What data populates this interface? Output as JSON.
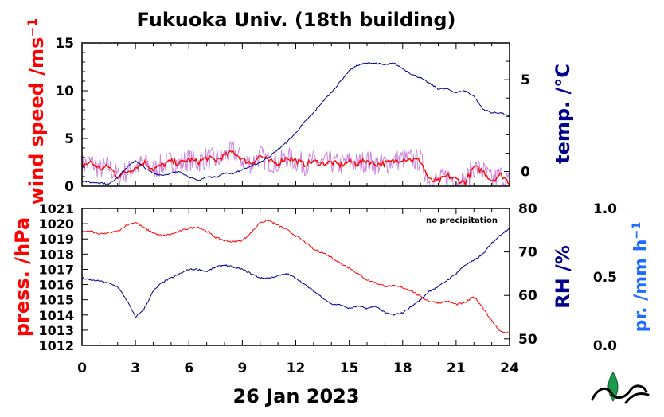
{
  "title": "Fukuoka Univ. (18th building)",
  "date_label": "26 Jan 2023",
  "logo_icon": "ies-leaf-logo",
  "colors": {
    "wind": "#ff0000",
    "wind_raw": "#cc88dd",
    "temp": "#00008b",
    "press": "#ff0000",
    "rh": "#00008b",
    "precip": "#1e6cff",
    "axis": "#000000"
  },
  "x_axis": {
    "ticks": [
      "0",
      "3",
      "6",
      "9",
      "12",
      "15",
      "18",
      "21",
      "24"
    ],
    "range": [
      0,
      24
    ]
  },
  "top_panel": {
    "left_axis": {
      "label_main": "wind speed /ms",
      "label_sup": "−1",
      "ticks": [
        "0",
        "5",
        "10",
        "15"
      ],
      "range": [
        0,
        15
      ]
    },
    "right_axis": {
      "label": "temp. /°C",
      "ticks": [
        "0",
        "5"
      ],
      "range": [
        -0.8,
        7.0
      ]
    }
  },
  "bottom_panel": {
    "left_axis": {
      "label": "press. /hPa",
      "ticks": [
        "1012",
        "1013",
        "1014",
        "1015",
        "1016",
        "1017",
        "1018",
        "1019",
        "1020",
        "1021"
      ],
      "range": [
        1012,
        1021
      ]
    },
    "right_axis": {
      "label": "RH /%",
      "ticks": [
        "50",
        "60",
        "70",
        "80"
      ],
      "range": [
        48.5,
        80
      ]
    },
    "far_right_axis": {
      "label_main": "pr. /mm h",
      "label_sup": "−1",
      "ticks": [
        "0.0",
        "0.5",
        "1.0"
      ],
      "range": [
        0,
        1
      ]
    },
    "annotation": "no precipitation"
  },
  "chart_data": [
    {
      "type": "line",
      "title": "Fukuoka Univ. (18th building)",
      "xlabel": "26 Jan 2023",
      "ylabel": "wind speed /ms−1",
      "y2label": "temp. /°C",
      "xlim": [
        0,
        24
      ],
      "ylim": [
        0,
        15
      ],
      "y2lim": [
        -0.8,
        7.0
      ],
      "grid": false,
      "series": [
        {
          "name": "wind speed",
          "axis": "left",
          "color": "#ff0000",
          "x": [
            0,
            0.5,
            1,
            1.5,
            2,
            2.5,
            3,
            3.5,
            4,
            4.5,
            5,
            5.5,
            6,
            6.5,
            7,
            7.5,
            8,
            8.5,
            9,
            9.5,
            10,
            10.5,
            11,
            11.5,
            12,
            12.5,
            13,
            13.5,
            14,
            14.5,
            15,
            15.5,
            16,
            16.5,
            17,
            17.5,
            18,
            18.5,
            19,
            19.5,
            20,
            20.5,
            21,
            21.5,
            22,
            22.5,
            23,
            23.5,
            24
          ],
          "values": [
            2.2,
            2.5,
            1.8,
            2.1,
            1.0,
            1.5,
            2.0,
            2.5,
            1.8,
            2.2,
            2.6,
            2.4,
            2.8,
            2.5,
            3.0,
            2.7,
            3.2,
            3.6,
            2.8,
            2.4,
            3.2,
            2.6,
            2.4,
            3.0,
            2.7,
            2.3,
            2.6,
            2.4,
            2.5,
            2.2,
            2.6,
            2.4,
            2.7,
            2.3,
            2.4,
            2.6,
            2.9,
            2.8,
            2.7,
            0.6,
            0.5,
            1.1,
            0.7,
            0.4,
            2.0,
            1.6,
            0.6,
            1.2,
            0.4
          ]
        },
        {
          "name": "temperature",
          "axis": "right",
          "color": "#00008b",
          "x": [
            0,
            0.5,
            1,
            1.5,
            2,
            2.5,
            3,
            3.5,
            4,
            4.5,
            5,
            5.5,
            6,
            6.5,
            7,
            7.5,
            8,
            8.5,
            9,
            9.5,
            10,
            10.5,
            11,
            11.5,
            12,
            12.5,
            13,
            13.5,
            14,
            14.5,
            15,
            15.5,
            16,
            16.5,
            17,
            17.5,
            18,
            18.5,
            19,
            19.5,
            20,
            20.5,
            21,
            21.5,
            22,
            22.5,
            23,
            23.5,
            24
          ],
          "values": [
            -0.5,
            -0.6,
            -0.6,
            -0.7,
            -0.3,
            0.2,
            0.6,
            0.2,
            -0.1,
            -0.2,
            -0.1,
            0.0,
            -0.3,
            -0.5,
            -0.3,
            -0.3,
            -0.1,
            -0.1,
            0.1,
            0.3,
            0.5,
            0.8,
            1.2,
            1.6,
            2.1,
            2.7,
            3.2,
            3.8,
            4.3,
            4.9,
            5.5,
            5.8,
            5.9,
            5.9,
            5.8,
            5.9,
            5.6,
            5.3,
            5.1,
            4.8,
            4.5,
            4.5,
            4.3,
            4.4,
            4.1,
            3.4,
            3.2,
            3.2,
            3.0
          ]
        }
      ]
    },
    {
      "type": "line",
      "xlabel": "26 Jan 2023",
      "ylabel": "press. /hPa",
      "y2label": "RH /%",
      "y3label": "pr. /mm h−1",
      "xlim": [
        0,
        24
      ],
      "ylim": [
        1012,
        1021
      ],
      "y2lim": [
        48.5,
        80
      ],
      "y3lim": [
        0,
        1
      ],
      "annotation": "no precipitation",
      "grid": false,
      "series": [
        {
          "name": "pressure",
          "axis": "left",
          "color": "#ff0000",
          "x": [
            0,
            0.5,
            1,
            1.5,
            2,
            2.5,
            3,
            3.5,
            4,
            4.5,
            5,
            5.5,
            6,
            6.5,
            7,
            7.5,
            8,
            8.5,
            9,
            9.5,
            10,
            10.5,
            11,
            11.5,
            12,
            12.5,
            13,
            13.5,
            14,
            14.5,
            15,
            15.5,
            16,
            16.5,
            17,
            17.5,
            18,
            18.5,
            19,
            19.5,
            20,
            20.5,
            21,
            21.5,
            22,
            22.5,
            23,
            23.5,
            24
          ],
          "values": [
            1019.5,
            1019.5,
            1019.3,
            1019.4,
            1019.5,
            1019.9,
            1020.1,
            1019.7,
            1019.4,
            1019.2,
            1019.3,
            1019.5,
            1019.7,
            1019.8,
            1019.5,
            1019.1,
            1018.9,
            1018.8,
            1018.9,
            1019.4,
            1020.1,
            1020.2,
            1019.9,
            1019.6,
            1019.2,
            1018.8,
            1018.3,
            1018.1,
            1017.8,
            1017.4,
            1017.1,
            1016.7,
            1016.3,
            1016.1,
            1015.9,
            1015.9,
            1015.8,
            1015.6,
            1015.2,
            1014.9,
            1014.8,
            1014.9,
            1014.7,
            1014.8,
            1015.2,
            1014.5,
            1013.6,
            1012.9,
            1012.8
          ]
        },
        {
          "name": "relative humidity",
          "axis": "right",
          "color": "#00008b",
          "x": [
            0,
            0.5,
            1,
            1.5,
            2,
            2.5,
            3,
            3.5,
            4,
            4.5,
            5,
            5.5,
            6,
            6.5,
            7,
            7.5,
            8,
            8.5,
            9,
            9.5,
            10,
            10.5,
            11,
            11.5,
            12,
            12.5,
            13,
            13.5,
            14,
            14.5,
            15,
            15.5,
            16,
            16.5,
            17,
            17.5,
            18,
            18.5,
            19,
            19.5,
            20,
            20.5,
            21,
            21.5,
            22,
            22.5,
            23,
            23.5,
            24
          ],
          "values": [
            64,
            63.5,
            63.3,
            62.8,
            62,
            59,
            55,
            57,
            61,
            63,
            64,
            65,
            66,
            66,
            65.5,
            66.5,
            67,
            66.5,
            66,
            65,
            64,
            64,
            64.5,
            65,
            64,
            62.5,
            61,
            59.5,
            58,
            57.8,
            57,
            57.5,
            57,
            57.5,
            56,
            55.5,
            56,
            57.5,
            59,
            61,
            62,
            63.5,
            65,
            67,
            68,
            69.5,
            72,
            74,
            75.5
          ]
        }
      ]
    }
  ]
}
